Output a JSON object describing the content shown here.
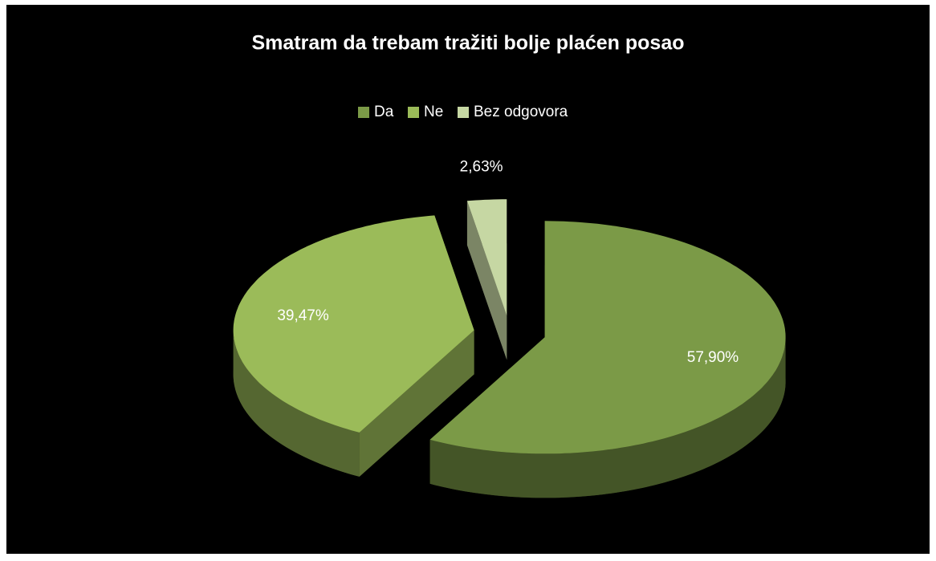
{
  "chart_data": {
    "type": "pie3d",
    "title": "Smatram da trebam tražiti bolje plaćen posao",
    "categories": [
      "Da",
      "Ne",
      "Bez odgovora"
    ],
    "values": [
      57.9,
      39.47,
      2.63
    ],
    "value_labels": [
      "57,90%",
      "39,47%",
      "2,63%"
    ],
    "colors": [
      "#7b9a47",
      "#9bbb59",
      "#c6d7a3"
    ],
    "legend": "top"
  }
}
